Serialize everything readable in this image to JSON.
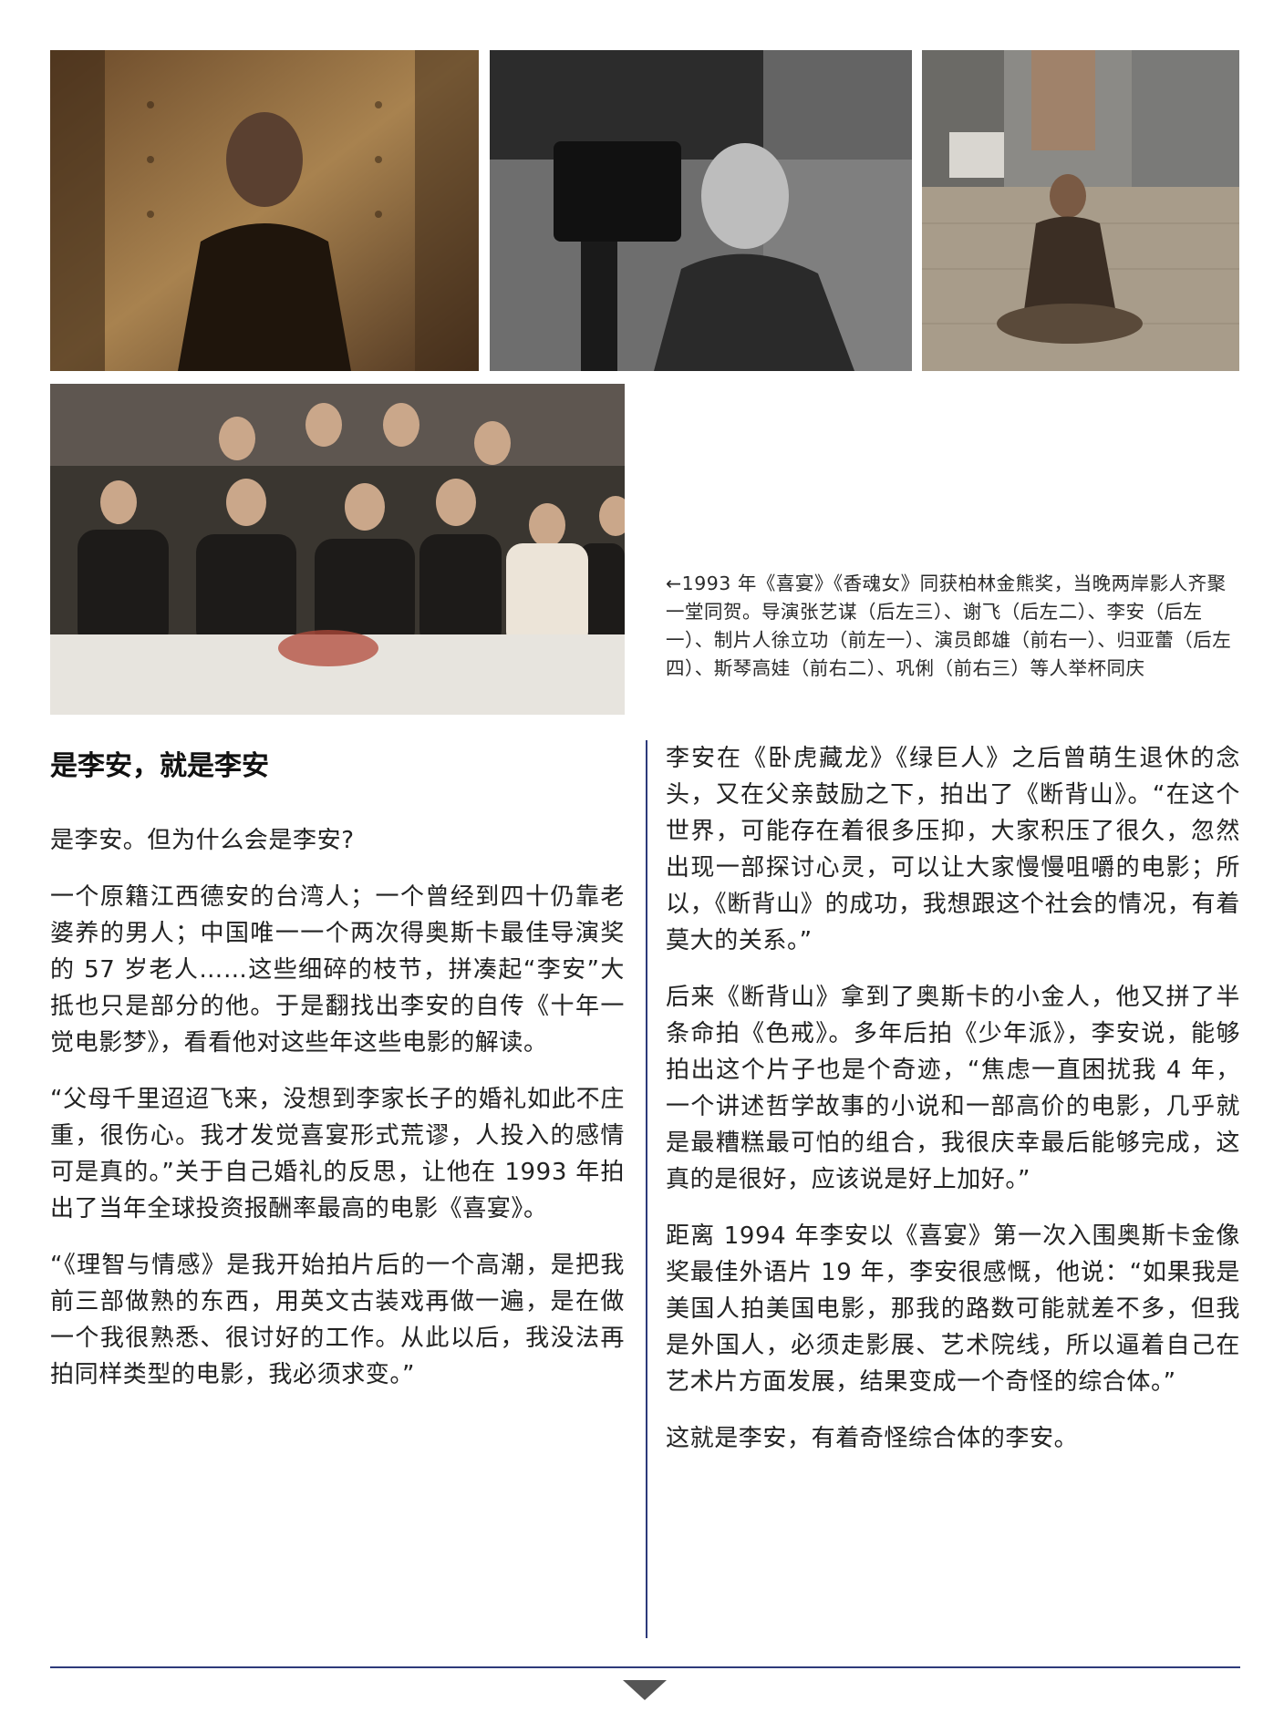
{
  "photos": {
    "p1": "portrait-against-rusted-wall",
    "p2": "director-with-film-camera",
    "p3": "sitting-on-city-pavement",
    "p4": "group-banquet-toast"
  },
  "caption": "←1993 年《喜宴》《香魂女》同获柏林金熊奖，当晚两岸影人齐聚一堂同贺。导演张艺谋（后左三）、谢飞（后左二）、李安（后左一）、制片人徐立功（前左一）、演员郎雄（前右一）、归亚蕾（后左四）、斯琴高娃（前右二）、巩俐（前右三）等人举杯同庆",
  "article": {
    "title": "是李安，就是李安",
    "left": [
      "是李安。但为什么会是李安?",
      "一个原籍江西德安的台湾人；一个曾经到四十仍靠老婆养的男人；中国唯一一个两次得奥斯卡最佳导演奖的 57 岁老人……这些细碎的枝节，拼凑起“李安”大抵也只是部分的他。于是翻找出李安的自传《十年一觉电影梦》，看看他对这些年这些电影的解读。",
      "“父母千里迢迢飞来，没想到李家长子的婚礼如此不庄重，很伤心。我才发觉喜宴形式荒谬，人投入的感情可是真的。”关于自己婚礼的反思，让他在 1993 年拍出了当年全球投资报酬率最高的电影《喜宴》。",
      "“《理智与情感》是我开始拍片后的一个高潮，是把我前三部做熟的东西，用英文古装戏再做一遍，是在做一个我很熟悉、很讨好的工作。从此以后，我没法再拍同样类型的电影，我必须求变。”"
    ],
    "right": [
      "李安在《卧虎藏龙》《绿巨人》之后曾萌生退休的念头，又在父亲鼓励之下，拍出了《断背山》。“在这个世界，可能存在着很多压抑，大家积压了很久，忽然出现一部探讨心灵，可以让大家慢慢咀嚼的电影；所以，《断背山》的成功，我想跟这个社会的情况，有着莫大的关系。”",
      "后来《断背山》拿到了奥斯卡的小金人，他又拼了半条命拍《色戒》。多年后拍《少年派》，李安说，能够拍出这个片子也是个奇迹，“焦虑一直困扰我 4 年，一个讲述哲学故事的小说和一部高价的电影，几乎就是最糟糕最可怕的组合，我很庆幸最后能够完成，这真的是很好，应该说是好上加好。”",
      "距离 1994 年李安以《喜宴》第一次入围奥斯卡金像奖最佳外语片 19 年，李安很感慨，他说：“如果我是美国人拍美国电影，那我的路数可能就差不多，但我是外国人，必须走影展、艺术院线，所以逼着自己在艺术片方面发展，结果变成一个奇怪的综合体。”",
      "这就是李安，有着奇怪综合体的李安。"
    ]
  },
  "colors": {
    "rule": "#2d3a7a",
    "marker": "#555555"
  }
}
